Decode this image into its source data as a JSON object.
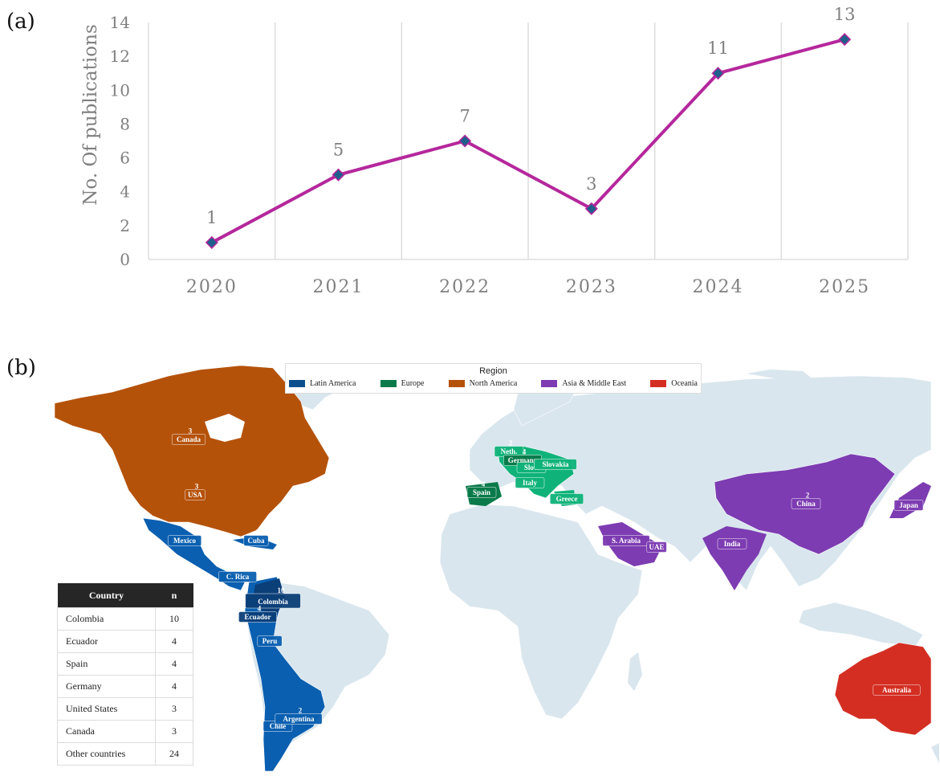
{
  "panel_a_label": "(a)",
  "panel_b_label": "(b)",
  "chart_data": [
    {
      "type": "line",
      "x": [
        "2020",
        "2021",
        "2022",
        "2023",
        "2024",
        "2025"
      ],
      "values": [
        1,
        5,
        7,
        3,
        11,
        13
      ],
      "data_labels": [
        "1",
        "5",
        "7",
        "3",
        "11",
        "13"
      ],
      "ylabel": "No. Of publications",
      "yticks": [
        "0",
        "2",
        "4",
        "6",
        "8",
        "10",
        "12",
        "14"
      ],
      "ylim": [
        0,
        14
      ],
      "line_color": "#b5279c",
      "marker_color": "#1f5f8b",
      "grid": "vertical"
    },
    {
      "type": "map",
      "legend": {
        "title": "Region",
        "items": [
          {
            "label": "Latin America",
            "color": "#0b4f8c"
          },
          {
            "label": "Europe",
            "color": "#0a7a4a"
          },
          {
            "label": "North America",
            "color": "#b5520a"
          },
          {
            "label": "Asia & Middle East",
            "color": "#7d3cb2"
          },
          {
            "label": "Oceania",
            "color": "#d42e22"
          }
        ]
      },
      "country_labels": [
        {
          "name": "Canada",
          "n": "3"
        },
        {
          "name": "USA",
          "n": "3"
        },
        {
          "name": "Mexico",
          "n": ""
        },
        {
          "name": "Cuba",
          "n": "2"
        },
        {
          "name": "C. Rica",
          "n": ""
        },
        {
          "name": "Colombia",
          "n": "10"
        },
        {
          "name": "Ecuador",
          "n": "4"
        },
        {
          "name": "Peru",
          "n": ""
        },
        {
          "name": "Chile",
          "n": ""
        },
        {
          "name": "Argentina",
          "n": "2"
        },
        {
          "name": "Neth.",
          "n": "2"
        },
        {
          "name": "Germany",
          "n": "4"
        },
        {
          "name": "Slov.",
          "n": ""
        },
        {
          "name": "Slovakia",
          "n": ""
        },
        {
          "name": "Italy",
          "n": ""
        },
        {
          "name": "Spain",
          "n": "4"
        },
        {
          "name": "Greece",
          "n": ""
        },
        {
          "name": "S. Arabia",
          "n": ""
        },
        {
          "name": "UAE",
          "n": ""
        },
        {
          "name": "India",
          "n": ""
        },
        {
          "name": "China",
          "n": "2"
        },
        {
          "name": "Japan",
          "n": ""
        },
        {
          "name": "Australia",
          "n": ""
        }
      ],
      "table": {
        "headers": [
          "Country",
          "n"
        ],
        "rows": [
          [
            "Colombia",
            "10"
          ],
          [
            "Ecuador",
            "4"
          ],
          [
            "Spain",
            "4"
          ],
          [
            "Germany",
            "4"
          ],
          [
            "United States",
            "3"
          ],
          [
            "Canada",
            "3"
          ],
          [
            "Other countries",
            "24"
          ]
        ]
      }
    }
  ]
}
